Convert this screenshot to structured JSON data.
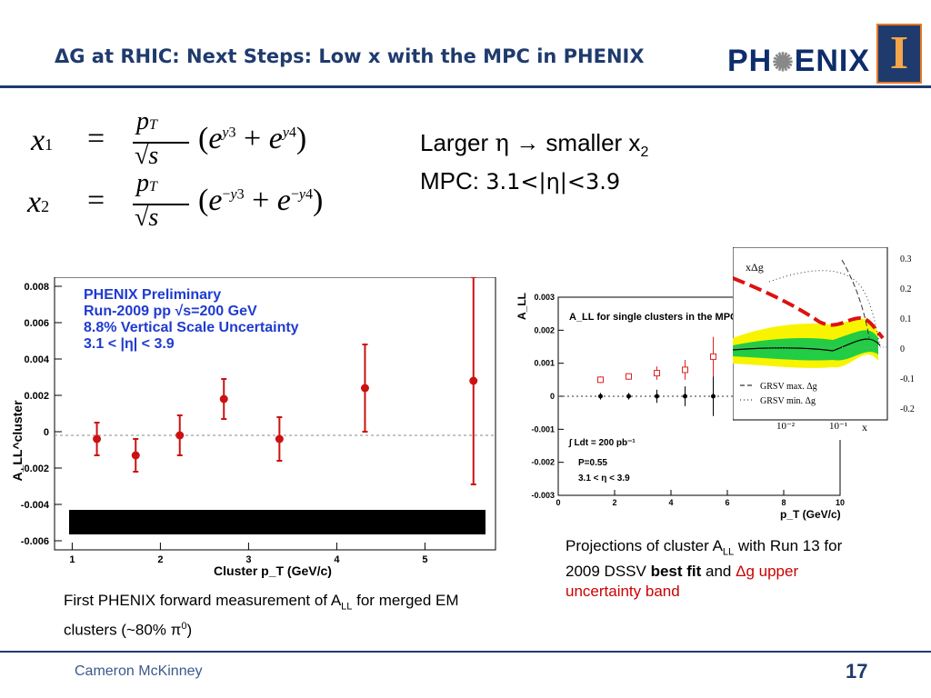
{
  "title": "ΔG at RHIC: Next Steps: Low x with the MPC in PHENIX",
  "logo": {
    "text_left": "PH",
    "text_right": "ENIX",
    "university_letter": "I"
  },
  "equations": {
    "x1": "x₁ = (p_T/√s)(e^{y3} + e^{y4})",
    "x2": "x₂ = (p_T/√s)(e^{−y3} + e^{−y4})"
  },
  "bullets": {
    "line1": {
      "a": "Larger ",
      "eta": "η",
      "arrow": " → smaller x",
      "sub": "2"
    },
    "line2": {
      "a": "MPC: ",
      "b": "3.1<|η|<3.9"
    }
  },
  "left_plot": {
    "legend": [
      "PHENIX Preliminary",
      "Run-2009 pp √s=200 GeV",
      "8.8% Vertical Scale Uncertainty",
      "3.1 < |η| < 3.9"
    ],
    "ylabel": "A_LL^cluster",
    "xlabel": "Cluster p_T (GeV/c)",
    "yticks": [
      "0.008",
      "0.006",
      "0.004",
      "0.002",
      "0",
      "-0.002",
      "-0.004",
      "-0.006"
    ],
    "xticks": [
      "1",
      "2",
      "3",
      "4",
      "5"
    ]
  },
  "right_plot": {
    "inner_title": "A_LL for single clusters in the MPC",
    "ylabel": "A_LL",
    "xlabel": "p_T (GeV/c)",
    "yticks": [
      "0.003",
      "0.002",
      "0.001",
      "0",
      "-0.001",
      "-0.002",
      "-0.003"
    ],
    "xticks": [
      "0",
      "2",
      "4",
      "6",
      "8",
      "10"
    ],
    "annot": [
      "∫ Ldt = 200 pb⁻¹",
      "P=0.55",
      "3.1 < η < 3.9"
    ]
  },
  "inset_plot": {
    "label": "xΔg",
    "yticks": [
      "0.3",
      "0.2",
      "0.1",
      "0",
      "-0.1",
      "-0.2"
    ],
    "xticks": [
      "10⁻²",
      "10⁻¹"
    ],
    "xlabel": "x",
    "legend": [
      "GRSV max. Δg",
      "GRSV min. Δg"
    ]
  },
  "caption_left": {
    "a": "First PHENIX forward measurement of A",
    "sub": "LL",
    "b": " for merged EM clusters (~80% π",
    "sup": "0",
    "c": ")"
  },
  "caption_right": {
    "a": "Projections of cluster A",
    "sub": "LL",
    "b": " with Run 13 for 2009 DSSV ",
    "bold": "best fit",
    "c": " and ",
    "red": "Δg upper uncertainty band"
  },
  "footer": {
    "name": "Cameron McKinney",
    "page": "17"
  },
  "chart_data": [
    {
      "type": "scatter",
      "title": "PHENIX Preliminary",
      "xlabel": "Cluster p_T (GeV/c)",
      "ylabel": "A_LL^cluster",
      "xlim": [
        0.8,
        5.8
      ],
      "ylim": [
        -0.0065,
        0.0085
      ],
      "series": [
        {
          "name": "PHENIX Preliminary",
          "x": [
            1.28,
            1.72,
            2.22,
            2.72,
            3.35,
            4.32,
            5.55
          ],
          "y": [
            -0.0004,
            -0.0013,
            -0.0002,
            0.0018,
            -0.0004,
            0.0024,
            0.0028
          ],
          "err": [
            0.0009,
            0.0009,
            0.0011,
            0.0011,
            0.0012,
            0.0024,
            0.0057
          ]
        }
      ]
    },
    {
      "type": "scatter",
      "title": "A_LL for single clusters in the MPC",
      "xlabel": "p_T (GeV/c)",
      "ylabel": "A_LL",
      "xlim": [
        0,
        10
      ],
      "ylim": [
        -0.003,
        0.003
      ],
      "series": [
        {
          "x": [
            1.5,
            2.5,
            3.5,
            4.5,
            5.5
          ],
          "y": [
            0.0005,
            0.0006,
            0.0007,
            0.0008,
            0.0012
          ],
          "err": [
            0.0001,
            0.0001,
            0.0002,
            0.0003,
            0.0006
          ]
        },
        {
          "x": [
            1.5,
            2.5,
            3.5,
            4.5,
            5.5
          ],
          "y": [
            0,
            0,
            0,
            0,
            0
          ],
          "err": [
            0.0001,
            0.0001,
            0.0002,
            0.0003,
            0.0006
          ]
        }
      ]
    }
  ]
}
